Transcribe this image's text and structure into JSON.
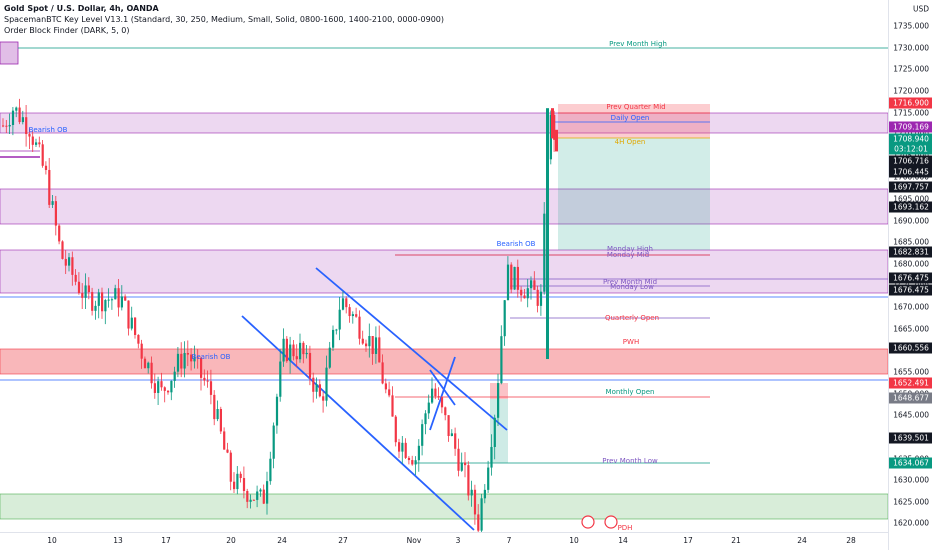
{
  "header": {
    "title": "Gold Spot / U.S. Dollar, 4h, OANDA",
    "indicator1": "SpacemanBTC Key Level V13.1 (Standard, 30, 250, Medium, Small, Solid, 0800-1600, 1400-2100, 0000-0900)",
    "indicator2": "Order Block Finder (DARK, 5, 0)"
  },
  "currency": "USD",
  "price_ticks": [
    "1735.000",
    "1730.000",
    "1725.000",
    "1720.000",
    "1715.000",
    "1710.000",
    "1705.000",
    "1700.000",
    "1695.000",
    "1690.000",
    "1685.000",
    "1680.000",
    "1675.000",
    "1670.000",
    "1665.000",
    "1660.000",
    "1655.000",
    "1650.000",
    "1645.000",
    "1640.000",
    "1635.000",
    "1630.000",
    "1625.000",
    "1620.000"
  ],
  "price_badges": [
    {
      "text": "1716.900",
      "color": "#f23645"
    },
    {
      "text": "1709.169",
      "color": "#9c27b0"
    },
    {
      "text": "1708.940",
      "color": "#089981"
    },
    {
      "text": "03:12:01",
      "color": "#089981"
    },
    {
      "text": "1706.716",
      "color": "#131722"
    },
    {
      "text": "1706.445",
      "color": "#131722"
    },
    {
      "text": "1697.757",
      "color": "#131722"
    },
    {
      "text": "1693.162",
      "color": "#131722"
    },
    {
      "text": "1682.831",
      "color": "#131722"
    },
    {
      "text": "1676.475",
      "color": "#131722"
    },
    {
      "text": "1676.475",
      "color": "#131722"
    },
    {
      "text": "1660.556",
      "color": "#131722"
    },
    {
      "text": "1652.491",
      "color": "#f23645"
    },
    {
      "text": "1648.677",
      "color": "#787b86"
    },
    {
      "text": "1639.501",
      "color": "#131722"
    },
    {
      "text": "1634.067",
      "color": "#089981"
    }
  ],
  "date_ticks": [
    "10",
    "13",
    "17",
    "20",
    "24",
    "27",
    "Nov",
    "3",
    "7",
    "10",
    "14",
    "17",
    "21",
    "24",
    "28"
  ],
  "levels": [
    {
      "text": "Prev Month High",
      "color": "#089981"
    },
    {
      "text": "Prev Quarter Mid",
      "color": "#f23645"
    },
    {
      "text": "Daily Open",
      "color": "#2962ff"
    },
    {
      "text": "4H Open",
      "color": "#e0a800"
    },
    {
      "text": "Monday High",
      "color": "#7e57c2"
    },
    {
      "text": "Monday Mid",
      "color": "#7e57c2"
    },
    {
      "text": "Prev Month Mid",
      "color": "#7e57c2"
    },
    {
      "text": "Monday Low",
      "color": "#7e57c2"
    },
    {
      "text": "Quarterly Open",
      "color": "#f23645"
    },
    {
      "text": "PWH",
      "color": "#f23645"
    },
    {
      "text": "Monthly Open",
      "color": "#089981"
    },
    {
      "text": "Prev Month Low",
      "color": "#7e57c2"
    },
    {
      "text": "PDH",
      "color": "#f23645"
    }
  ],
  "order_blocks": [
    {
      "text": "Bearish OB",
      "color": "#2962ff"
    },
    {
      "text": "Bearish OB",
      "color": "#2962ff"
    },
    {
      "text": "Bearish OB",
      "color": "#2962ff"
    }
  ],
  "colors": {
    "up": "#089981",
    "down": "#f23645",
    "purple_zone": "#e1bee7",
    "red_zone": "#f8a5a9",
    "green_zone": "#c8e6c9",
    "trend": "#2962ff"
  }
}
